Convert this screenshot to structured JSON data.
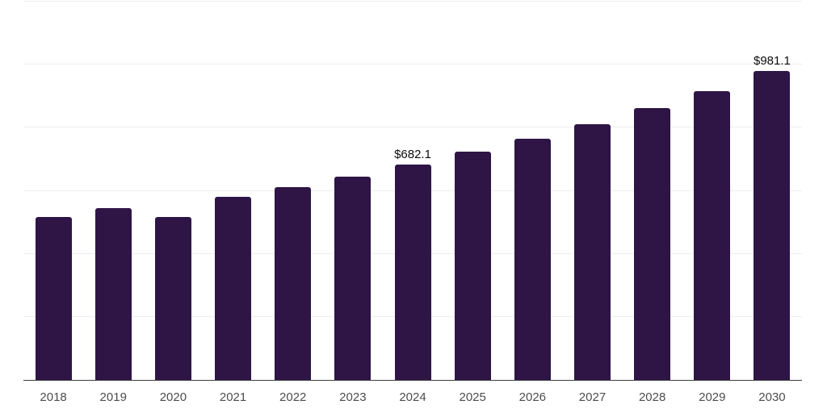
{
  "chart_data": {
    "type": "bar",
    "title": "",
    "xlabel": "",
    "ylabel": "",
    "categories": [
      "2018",
      "2019",
      "2020",
      "2021",
      "2022",
      "2023",
      "2024",
      "2025",
      "2026",
      "2027",
      "2028",
      "2029",
      "2030"
    ],
    "values": [
      517.9,
      544.6,
      515.7,
      580.9,
      611.2,
      644.3,
      682.1,
      723.0,
      764.2,
      812.1,
      862.9,
      916.2,
      981.1
    ],
    "data_labels": {
      "2024": "$682.1",
      "2030": "$981.1"
    },
    "ylim": [
      0,
      1200
    ],
    "gridline_step": 200,
    "grid": true,
    "legend": false,
    "colors": {
      "bar": "#2E1546",
      "gridline": "#ededed",
      "axis_line": "#3d3d3d",
      "tick_label": "#4d4d4d",
      "data_label": "#0d0d0d",
      "background": "#ffffff"
    }
  }
}
